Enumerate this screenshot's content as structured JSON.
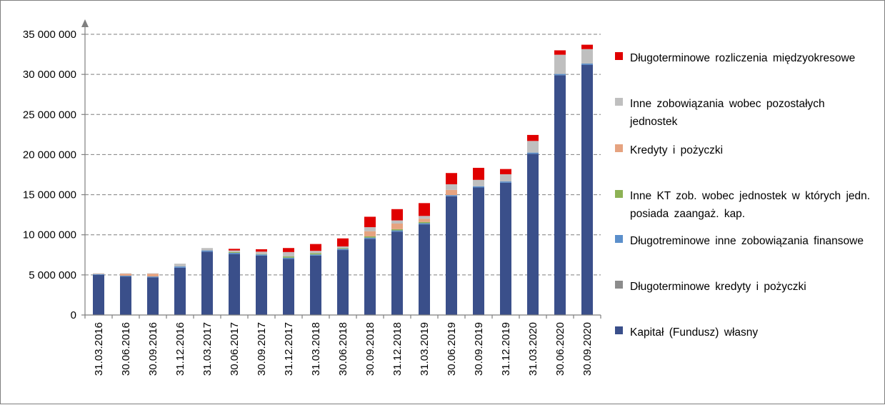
{
  "chart_data": {
    "type": "bar",
    "stacked": true,
    "categories": [
      "31.03.2016",
      "30.06.2016",
      "30.09.2016",
      "31.12.2016",
      "31.03.2017",
      "30.06.2017",
      "30.09.2017",
      "31.12.2017",
      "31.03.2018",
      "30.06.2018",
      "30.09.2018",
      "31.12.2018",
      "31.03.2019",
      "30.06.2019",
      "30.09.2019",
      "31.12.2019",
      "31.03.2020",
      "30.06.2020",
      "30.09.2020"
    ],
    "ylim": [
      0,
      35000000
    ],
    "yticks": [
      {
        "value": 0,
        "label": "0"
      },
      {
        "value": 5000000,
        "label": "5 000 000"
      },
      {
        "value": 10000000,
        "label": "10 000 000"
      },
      {
        "value": 15000000,
        "label": "15 000 000"
      },
      {
        "value": 20000000,
        "label": "20 000 000"
      },
      {
        "value": 25000000,
        "label": "25 000 000"
      },
      {
        "value": 30000000,
        "label": "30 000 000"
      },
      {
        "value": 35000000,
        "label": "35 000 000"
      }
    ],
    "grid": true,
    "legend_position": "right",
    "series": [
      {
        "name": "Kapitał (Fundusz) własny",
        "color": "#3A4F8A",
        "values": [
          5000000,
          4800000,
          4700000,
          5900000,
          7900000,
          7600000,
          7400000,
          7000000,
          7400000,
          8100000,
          9500000,
          10400000,
          11300000,
          14800000,
          15900000,
          16500000,
          20100000,
          29900000,
          31200000
        ]
      },
      {
        "name": "Długoterminowe kredyty i pożyczki",
        "color": "#8C8C8C",
        "values": [
          0,
          0,
          0,
          0,
          0,
          0,
          0,
          0,
          0,
          0,
          0,
          0,
          0,
          0,
          0,
          0,
          0,
          0,
          0
        ]
      },
      {
        "name": "Długotreminowe inne zobowiązania finansowe",
        "color": "#5B8FCB",
        "values": [
          100000,
          100000,
          100000,
          150000,
          150000,
          150000,
          150000,
          150000,
          150000,
          150000,
          150000,
          150000,
          150000,
          150000,
          150000,
          150000,
          150000,
          150000,
          150000
        ]
      },
      {
        "name": "Inne KT zob. wobec jednostek w których jedn. posiada zaangaż. kap.",
        "color": "#8DB255",
        "values": [
          0,
          0,
          0,
          0,
          0,
          100000,
          50000,
          150000,
          150000,
          100000,
          150000,
          150000,
          150000,
          0,
          0,
          0,
          0,
          0,
          0
        ]
      },
      {
        "name": "Kredyty i pożyczki",
        "color": "#E6A380",
        "values": [
          50000,
          250000,
          350000,
          0,
          0,
          0,
          0,
          0,
          0,
          0,
          650000,
          700000,
          400000,
          650000,
          0,
          0,
          0,
          0,
          0
        ]
      },
      {
        "name": "Inne zobowiązania wobec pozostałych jednostek",
        "color": "#BFBFBF",
        "values": [
          50000,
          50000,
          50000,
          350000,
          300000,
          200000,
          300000,
          550000,
          300000,
          200000,
          500000,
          400000,
          350000,
          700000,
          800000,
          900000,
          1450000,
          2400000,
          1800000
        ]
      },
      {
        "name": "Długoterminowe rozliczenia międzyokresowe",
        "color": "#E00000",
        "values": [
          0,
          0,
          0,
          0,
          0,
          200000,
          300000,
          500000,
          850000,
          1000000,
          1300000,
          1400000,
          1600000,
          1400000,
          1500000,
          650000,
          750000,
          550000,
          550000
        ]
      }
    ]
  },
  "legend": [
    {
      "label": "Długoterminowe  rozliczenia międzyokresowe",
      "color": "#E00000"
    },
    {
      "label": "Inne zobowiązania  wobec pozostałych jednostek",
      "color": "#BFBFBF"
    },
    {
      "label": "Kredyty  i pożyczki",
      "color": "#E6A380"
    },
    {
      "label": "Inne KT zob.  wobec jednostek  w których jedn.  posiada zaangaż.  kap.",
      "color": "#8DB255"
    },
    {
      "label": "Długotreminowe  inne zobowiązania finansowe",
      "color": "#5B8FCB"
    },
    {
      "label": "Długoterminowe  kredyty i pożyczki",
      "color": "#8C8C8C"
    },
    {
      "label": "Kapitał (Fundusz)  własny",
      "color": "#3A4F8A"
    }
  ]
}
